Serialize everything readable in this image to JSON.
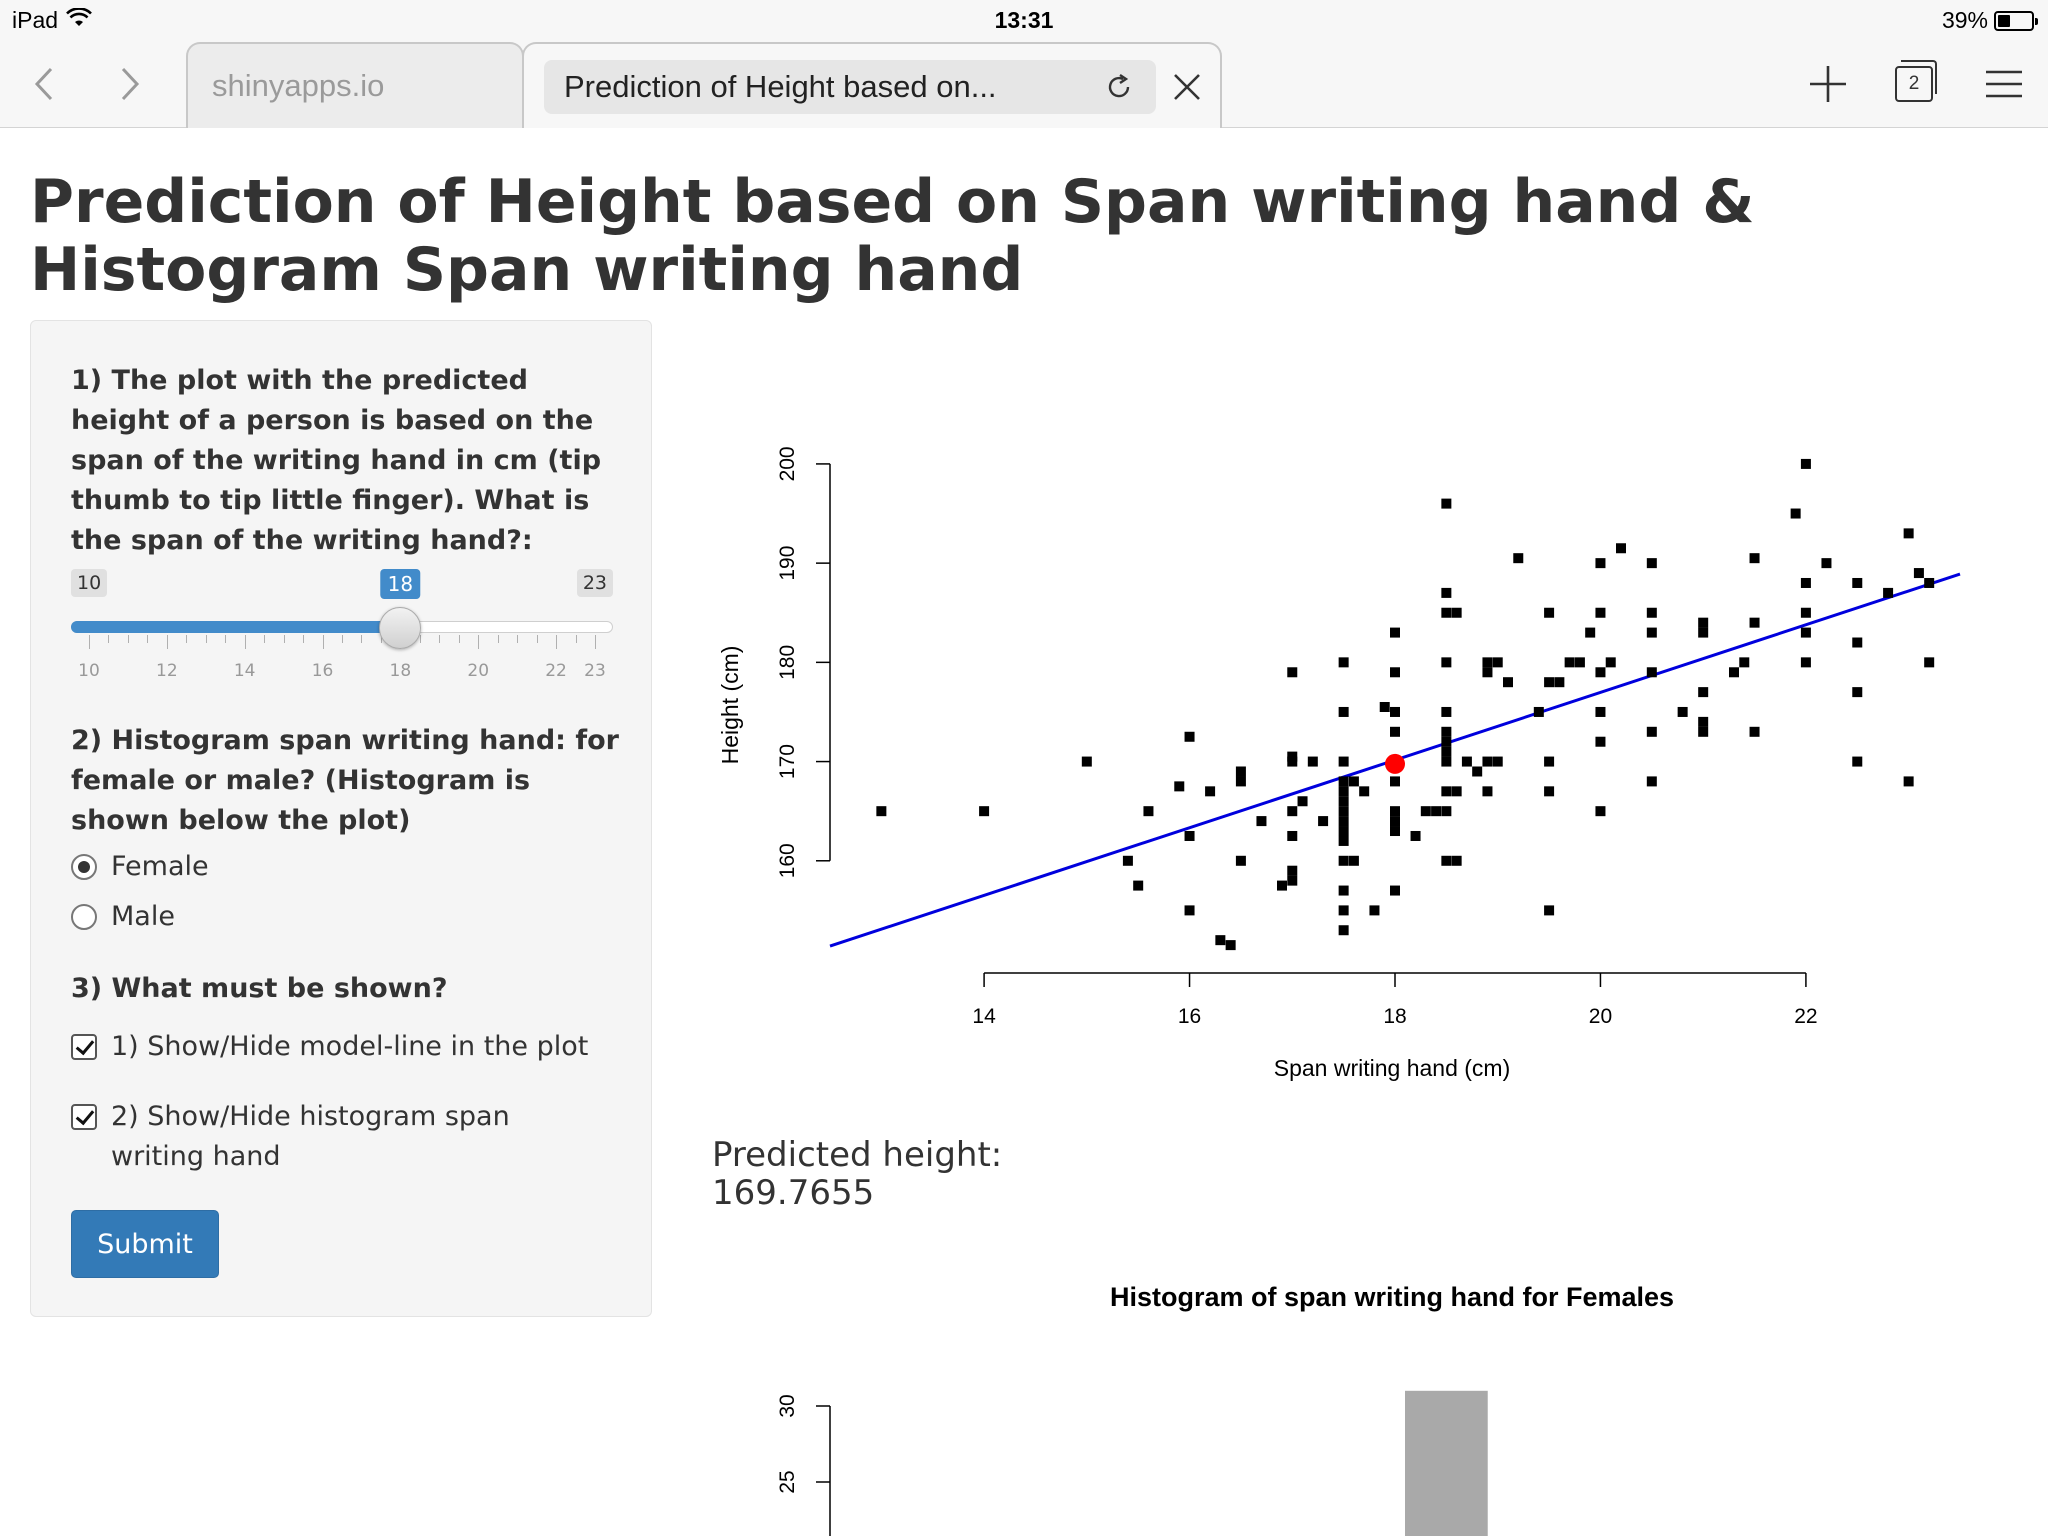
{
  "statusbar": {
    "device": "iPad",
    "time": "13:31",
    "battery": "39%",
    "battery_level": 0.39
  },
  "browser": {
    "back_icon": "chevron-left-icon",
    "forward_icon": "chevron-right-icon",
    "inactive_tab": "shinyapps.io",
    "active_tab": "Prediction of Height based on...",
    "tab_count": "2"
  },
  "page": {
    "title": "Prediction of Height based on Span writing hand & Histogram Span writing hand"
  },
  "sidebar": {
    "q1": "1) The plot with the predicted height of a person is based on the span of the writing hand in cm (tip thumb to tip little finger). What is the span of the writing hand?:",
    "slider": {
      "min": "10",
      "max": "23",
      "value": "18",
      "min_value": 10,
      "max_value": 23,
      "current_value": 18,
      "tick_labels": [
        "10",
        "12",
        "14",
        "16",
        "18",
        "20",
        "22",
        "23"
      ]
    },
    "q2": "2) Histogram span writing hand: for female or male? (Histogram is shown below the plot)",
    "radio_female": "Female",
    "radio_male": "Male",
    "q3": "3) What must be shown?",
    "check1": "1) Show/Hide model-line in the plot",
    "check2": "2) Show/Hide histogram span writing hand",
    "submit": "Submit"
  },
  "prediction": {
    "label": "Predicted height:",
    "value": "169.7655"
  },
  "chart_data": [
    {
      "type": "scatter",
      "title": "",
      "xlabel": "Span writing hand (cm)",
      "ylabel": "Height (cm)",
      "x_ticks": [
        "14",
        "16",
        "18",
        "20",
        "22"
      ],
      "y_ticks": [
        "160",
        "170",
        "180",
        "190",
        "200"
      ],
      "xlim": [
        12.5,
        23.5
      ],
      "ylim": [
        150,
        201
      ],
      "grid": false,
      "points": [
        [
          13,
          165
        ],
        [
          14,
          165
        ],
        [
          15,
          170
        ],
        [
          15.4,
          160
        ],
        [
          15.5,
          157.5
        ],
        [
          15.6,
          165
        ],
        [
          15.9,
          167.5
        ],
        [
          16,
          155
        ],
        [
          16,
          162.5
        ],
        [
          16,
          172.5
        ],
        [
          16.2,
          167
        ],
        [
          16.3,
          152
        ],
        [
          16.4,
          151.5
        ],
        [
          16.5,
          160
        ],
        [
          16.5,
          168
        ],
        [
          16.5,
          169
        ],
        [
          16.7,
          164
        ],
        [
          16.9,
          157.5
        ],
        [
          17,
          158
        ],
        [
          17,
          159
        ],
        [
          17,
          162.5
        ],
        [
          17,
          165
        ],
        [
          17,
          170
        ],
        [
          17,
          170.5
        ],
        [
          17,
          179
        ],
        [
          17.1,
          166
        ],
        [
          17.2,
          170
        ],
        [
          17.3,
          164
        ],
        [
          17.5,
          153
        ],
        [
          17.5,
          155
        ],
        [
          17.5,
          157
        ],
        [
          17.5,
          160
        ],
        [
          17.5,
          162
        ],
        [
          17.5,
          163
        ],
        [
          17.5,
          164
        ],
        [
          17.5,
          165
        ],
        [
          17.5,
          166
        ],
        [
          17.5,
          167
        ],
        [
          17.5,
          168
        ],
        [
          17.5,
          170
        ],
        [
          17.5,
          175
        ],
        [
          17.5,
          180
        ],
        [
          17.6,
          160
        ],
        [
          17.6,
          168
        ],
        [
          17.7,
          167
        ],
        [
          17.8,
          155
        ],
        [
          17.9,
          175.5
        ],
        [
          18,
          157
        ],
        [
          18,
          163
        ],
        [
          18,
          164
        ],
        [
          18,
          165
        ],
        [
          18,
          168
        ],
        [
          18,
          170
        ],
        [
          18,
          173
        ],
        [
          18,
          175
        ],
        [
          18,
          179
        ],
        [
          18,
          183
        ],
        [
          18.2,
          162.5
        ],
        [
          18.3,
          165
        ],
        [
          18.4,
          165
        ],
        [
          18.5,
          160
        ],
        [
          18.5,
          165
        ],
        [
          18.5,
          167
        ],
        [
          18.5,
          170
        ],
        [
          18.5,
          171
        ],
        [
          18.5,
          172
        ],
        [
          18.5,
          173
        ],
        [
          18.5,
          175
        ],
        [
          18.5,
          180
        ],
        [
          18.5,
          185
        ],
        [
          18.5,
          187
        ],
        [
          18.5,
          196
        ],
        [
          18.6,
          160
        ],
        [
          18.6,
          167
        ],
        [
          18.6,
          185
        ],
        [
          18.7,
          170
        ],
        [
          18.8,
          169
        ],
        [
          18.9,
          167
        ],
        [
          18.9,
          170
        ],
        [
          18.9,
          179
        ],
        [
          18.9,
          180
        ],
        [
          19,
          170
        ],
        [
          19,
          180
        ],
        [
          19.1,
          178
        ],
        [
          19.2,
          190.5
        ],
        [
          19.4,
          175
        ],
        [
          19.5,
          155
        ],
        [
          19.5,
          167
        ],
        [
          19.5,
          170
        ],
        [
          19.5,
          178
        ],
        [
          19.5,
          185
        ],
        [
          19.6,
          178
        ],
        [
          19.7,
          180
        ],
        [
          19.8,
          180
        ],
        [
          19.9,
          183
        ],
        [
          20,
          165
        ],
        [
          20,
          172
        ],
        [
          20,
          175
        ],
        [
          20,
          179
        ],
        [
          20,
          185
        ],
        [
          20,
          190
        ],
        [
          20.1,
          180
        ],
        [
          20.2,
          191.5
        ],
        [
          20.5,
          168
        ],
        [
          20.5,
          173
        ],
        [
          20.5,
          179
        ],
        [
          20.5,
          183
        ],
        [
          20.5,
          185
        ],
        [
          20.5,
          190
        ],
        [
          20.8,
          175
        ],
        [
          21,
          173
        ],
        [
          21,
          174
        ],
        [
          21,
          177
        ],
        [
          21,
          183
        ],
        [
          21,
          184
        ],
        [
          21.3,
          179
        ],
        [
          21.4,
          180
        ],
        [
          21.5,
          173
        ],
        [
          21.5,
          184
        ],
        [
          21.5,
          190.5
        ],
        [
          21.9,
          195
        ],
        [
          22,
          180
        ],
        [
          22,
          183
        ],
        [
          22,
          185
        ],
        [
          22,
          188
        ],
        [
          22,
          200
        ],
        [
          22.2,
          190
        ],
        [
          22.5,
          170
        ],
        [
          22.5,
          177
        ],
        [
          22.5,
          182
        ],
        [
          22.5,
          188
        ],
        [
          22.8,
          187
        ],
        [
          23,
          168
        ],
        [
          23,
          193
        ],
        [
          23.1,
          189
        ],
        [
          23.2,
          180
        ],
        [
          23.2,
          188
        ]
      ],
      "predicted_point": [
        18,
        169.7655
      ],
      "model_line": {
        "x": [
          12.5,
          23.5
        ],
        "y": [
          151.4,
          188.9
        ],
        "color": "#0000dd"
      },
      "point_color": "#000000",
      "predicted_color": "#ff0000"
    },
    {
      "type": "bar",
      "title": "Histogram of span writing hand for Females",
      "y_ticks": [
        "25",
        "30"
      ],
      "ylim": [
        0,
        32
      ],
      "bar_color": "#a9a9a9",
      "bars": [
        {
          "range": [
            18,
            19
          ],
          "count": 31
        }
      ]
    }
  ]
}
